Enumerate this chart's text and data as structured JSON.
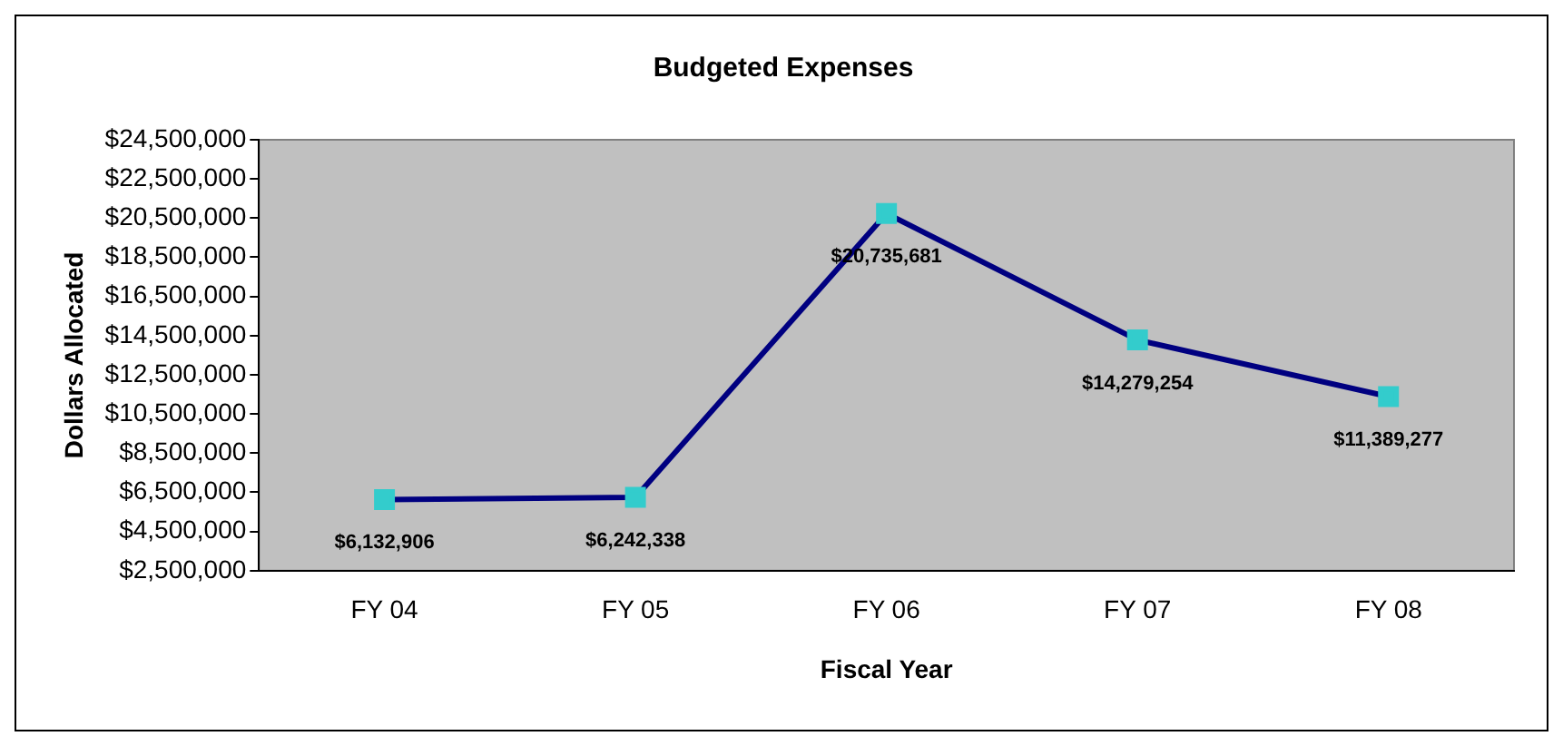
{
  "chart_data": {
    "type": "line",
    "title": "Budgeted Expenses",
    "xlabel": "Fiscal Year",
    "ylabel": "Dollars Allocated",
    "categories": [
      "FY 04",
      "FY 05",
      "FY 06",
      "FY 07",
      "FY 08"
    ],
    "series": [
      {
        "color": "#000080",
        "values": [
          6132906,
          6242338,
          20735681,
          14279254,
          11389277
        ],
        "value_labels": [
          "$6,132,906",
          "$6,242,338",
          "$20,735,681",
          "$14,279,254",
          "$11,389,277"
        ]
      }
    ],
    "marker": "square",
    "line_style": "solid",
    "legend": false,
    "grid": false,
    "ylim": [
      2500000,
      24500000
    ],
    "yticks": [
      {
        "value": 2500000,
        "label": "$2,500,000"
      },
      {
        "value": 4500000,
        "label": "$4,500,000"
      },
      {
        "value": 6500000,
        "label": "$6,500,000"
      },
      {
        "value": 8500000,
        "label": "$8,500,000"
      },
      {
        "value": 10500000,
        "label": "$10,500,000"
      },
      {
        "value": 12500000,
        "label": "$12,500,000"
      },
      {
        "value": 14500000,
        "label": "$14,500,000"
      },
      {
        "value": 16500000,
        "label": "$16,500,000"
      },
      {
        "value": 18500000,
        "label": "$18,500,000"
      },
      {
        "value": 20500000,
        "label": "$20,500,000"
      },
      {
        "value": 22500000,
        "label": "$22,500,000"
      },
      {
        "value": 24500000,
        "label": "$24,500,000"
      }
    ]
  }
}
